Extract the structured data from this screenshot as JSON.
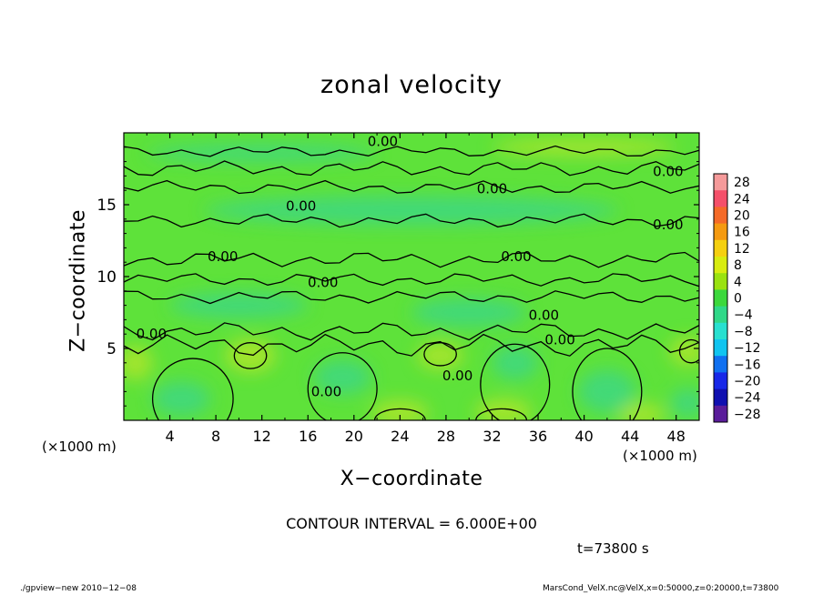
{
  "chart_data": {
    "type": "heatmap",
    "title": "zonal velocity",
    "xlabel": "X−coordinate",
    "ylabel": "Z−coordinate",
    "x_unit_left": "(×1000 m)",
    "x_unit_right": "(×1000 m)",
    "xlim": [
      0,
      50
    ],
    "ylim": [
      0,
      20
    ],
    "x_ticks": [
      4,
      8,
      12,
      16,
      20,
      24,
      28,
      32,
      36,
      40,
      44,
      48
    ],
    "x_tick_labels": [
      "4",
      "8",
      "12",
      "16",
      "20",
      "24",
      "28",
      "32",
      "36",
      "40",
      "44",
      "48"
    ],
    "y_ticks": [
      5,
      10,
      15
    ],
    "y_tick_labels": [
      "5",
      "10",
      "15"
    ],
    "colorbar": {
      "levels": [
        28,
        24,
        20,
        16,
        12,
        8,
        4,
        0,
        -4,
        -8,
        -12,
        -16,
        -20,
        -24,
        -28
      ],
      "labels": [
        "28",
        "24",
        "20",
        "16",
        "12",
        "8",
        "4",
        "0",
        "−4",
        "−8",
        "−12",
        "−16",
        "−20",
        "−24",
        "−28"
      ],
      "colors": [
        "#f59a9a",
        "#f5506a",
        "#f56a28",
        "#f59a10",
        "#f5d010",
        "#d8ec10",
        "#9ae210",
        "#3cd83c",
        "#30d888",
        "#28e0d0",
        "#10c4f0",
        "#1070f0",
        "#1828e8",
        "#1010b0",
        "#5a1c9a"
      ]
    },
    "field_colors": {
      "base": "#5ee23a",
      "positive": "#b8e628",
      "negative": "#3ad68c"
    },
    "contour_labels": [
      {
        "x": 22.5,
        "z": 19.4,
        "text": "0.00"
      },
      {
        "x": 47.3,
        "z": 17.3,
        "text": "0.00"
      },
      {
        "x": 32.0,
        "z": 16.1,
        "text": "0.00"
      },
      {
        "x": 15.4,
        "z": 14.9,
        "text": "0.00"
      },
      {
        "x": 47.3,
        "z": 13.6,
        "text": "0.00"
      },
      {
        "x": 8.6,
        "z": 11.4,
        "text": "0.00"
      },
      {
        "x": 34.1,
        "z": 11.4,
        "text": "0.00"
      },
      {
        "x": 17.3,
        "z": 9.6,
        "text": "0.00"
      },
      {
        "x": 36.5,
        "z": 7.3,
        "text": "0.00"
      },
      {
        "x": 2.4,
        "z": 6.0,
        "text": "0.00"
      },
      {
        "x": 37.9,
        "z": 5.6,
        "text": "0.00"
      },
      {
        "x": 29.0,
        "z": 3.1,
        "text": "0.00"
      },
      {
        "x": 17.6,
        "z": 2.0,
        "text": "0.00"
      }
    ],
    "contour_interval_text": "CONTOUR INTERVAL = 6.000E+00",
    "time_text": "t=73800 s"
  },
  "footer": {
    "left": "./gpview−new  2010−12−08",
    "right": "MarsCond_VelX.nc@VelX,x=0:50000,z=0:20000,t=73800"
  }
}
